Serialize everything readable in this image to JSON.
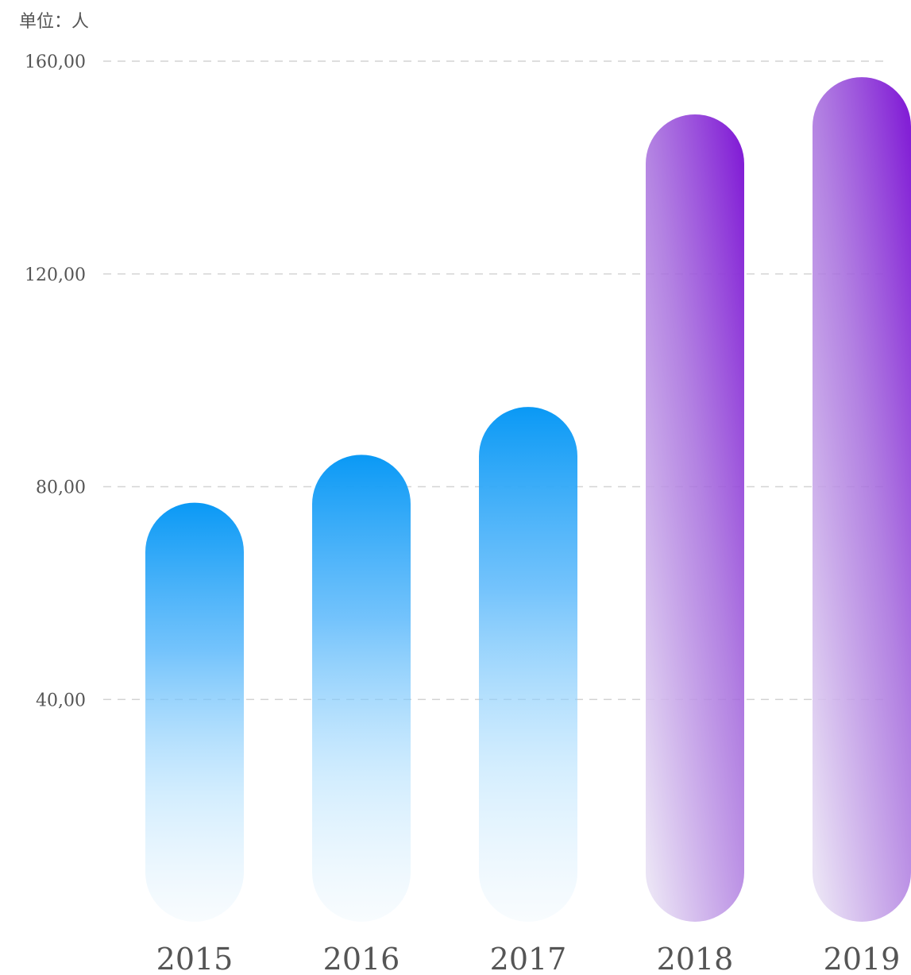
{
  "chart_data": {
    "type": "bar",
    "unit_label": "单位：人",
    "categories": [
      "2015",
      "2016",
      "2017",
      "2018",
      "2019"
    ],
    "values": [
      77,
      86,
      95,
      150,
      157
    ],
    "ylim": [
      0,
      160
    ],
    "yticks": [
      40,
      80,
      120,
      160
    ],
    "ytick_labels": [
      "40,00",
      "80,00",
      "120,00",
      "160,00"
    ],
    "grid": true,
    "bar_colors": [
      "blue",
      "blue",
      "blue",
      "purple",
      "purple"
    ],
    "colors": {
      "blue": "#0a99f5",
      "purple": "#8320d6",
      "grid": "#d4d4d4",
      "text": "#555555"
    }
  }
}
